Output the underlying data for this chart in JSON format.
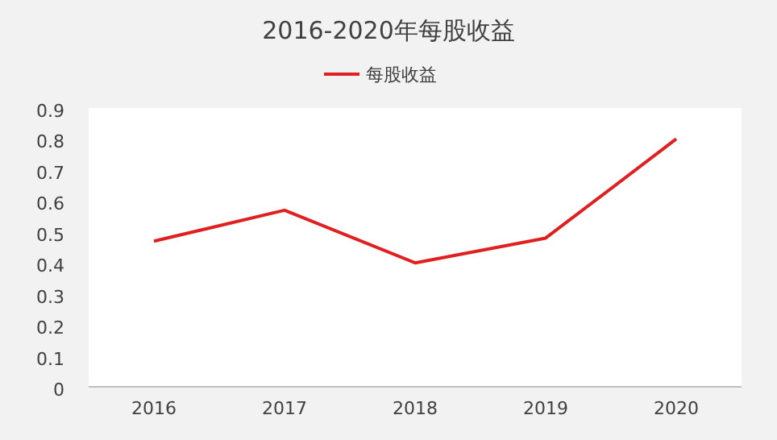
{
  "chart_data": {
    "type": "line",
    "title": "2016-2020年每股收益",
    "categories": [
      "2016",
      "2017",
      "2018",
      "2019",
      "2020"
    ],
    "series": [
      {
        "name": "每股收益",
        "color": "#e02020",
        "values": [
          0.47,
          0.57,
          0.4,
          0.48,
          0.8
        ]
      }
    ],
    "ylim": [
      0,
      0.9
    ],
    "yticks": [
      0,
      0.1,
      0.2,
      0.3,
      0.4,
      0.5,
      0.6,
      0.7,
      0.8,
      0.9
    ],
    "legend": "top",
    "grid": false
  }
}
